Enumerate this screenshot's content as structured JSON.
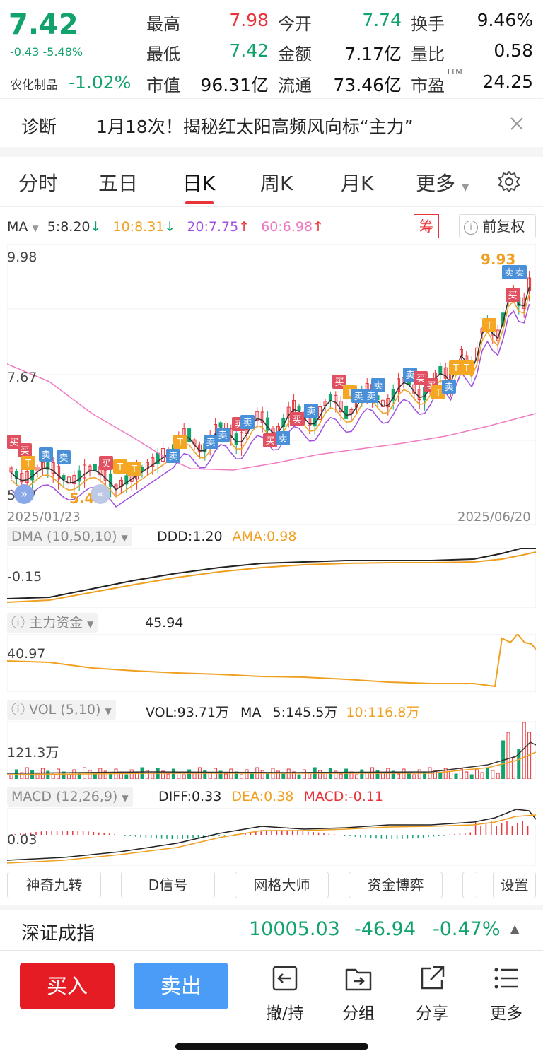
{
  "quote": {
    "price": "7.42",
    "change": "-0.43",
    "change_pct": "-5.48%",
    "sector_name": "农化制品",
    "sector_pct": "-1.02%",
    "stats": [
      {
        "label": "最高",
        "value": "7.98",
        "color": "red"
      },
      {
        "label": "今开",
        "value": "7.74",
        "color": "green"
      },
      {
        "label": "换手",
        "value": "9.46%",
        "color": "black"
      },
      {
        "label": "最低",
        "value": "7.42",
        "color": "green"
      },
      {
        "label": "金额",
        "value": "7.17亿",
        "color": "black"
      },
      {
        "label": "量比",
        "value": "0.58",
        "color": "black"
      },
      {
        "label": "市值",
        "value": "96.31亿",
        "color": "black"
      },
      {
        "label": "流通",
        "value": "73.46亿",
        "color": "black"
      },
      {
        "label": "市盈",
        "value": "24.25",
        "color": "black",
        "sup": "TTM"
      }
    ]
  },
  "diagnosis": {
    "tag": "诊断",
    "text": "1月18次！揭秘红太阳高频风向标“主力”"
  },
  "tabs": [
    "分时",
    "五日",
    "日K",
    "周K",
    "月K",
    "更多"
  ],
  "active_tab": "日K",
  "ma_bar": {
    "label": "MA",
    "ma5": "5:8.20",
    "ma10": "10:8.31",
    "ma20": "20:7.75",
    "ma60": "60:6.98",
    "chip_btn": "筹",
    "adjust_btn": "前复权"
  },
  "kline": {
    "high_label": "9.98",
    "mid_label": "7.67",
    "low_label": "5.37",
    "peak_marker": "9.93",
    "trough_marker": "5.42",
    "start_date": "2025/01/23",
    "end_date": "2025/06/20",
    "signals": [
      "卖",
      "买",
      "T"
    ]
  },
  "dma": {
    "label": "DMA (10,50,10)",
    "ddd": "DDD:1.20",
    "ama": "AMA:0.98",
    "axis": "-0.15"
  },
  "capital": {
    "label": "主力资金",
    "value": "45.94",
    "axis": "40.97"
  },
  "vol": {
    "label": "VOL (5,10)",
    "vol": "VOL:93.71万",
    "ma_lbl": "MA",
    "ma5": "5:145.5万",
    "ma10": "10:116.8万",
    "axis": "121.3万"
  },
  "macd": {
    "label": "MACD (12,26,9)",
    "diff": "DIFF:0.33",
    "dea": "DEA:0.38",
    "macd": "MACD:-0.11",
    "axis": "0.03"
  },
  "tools": [
    "神奇九转",
    "D信号",
    "网格大师",
    "资金博弈",
    "设置"
  ],
  "index_bar": {
    "name": "深证成指",
    "value": "10005.03",
    "change": "-46.94",
    "pct": "-0.47%"
  },
  "actions": {
    "buy": "买入",
    "sell": "卖出",
    "nav": [
      "撤/持",
      "分组",
      "分享",
      "更多"
    ]
  },
  "colors": {
    "up": "#e8333a",
    "down": "#12a36c",
    "buy_btn": "#e51c23",
    "sell_btn": "#4a9cf7"
  }
}
